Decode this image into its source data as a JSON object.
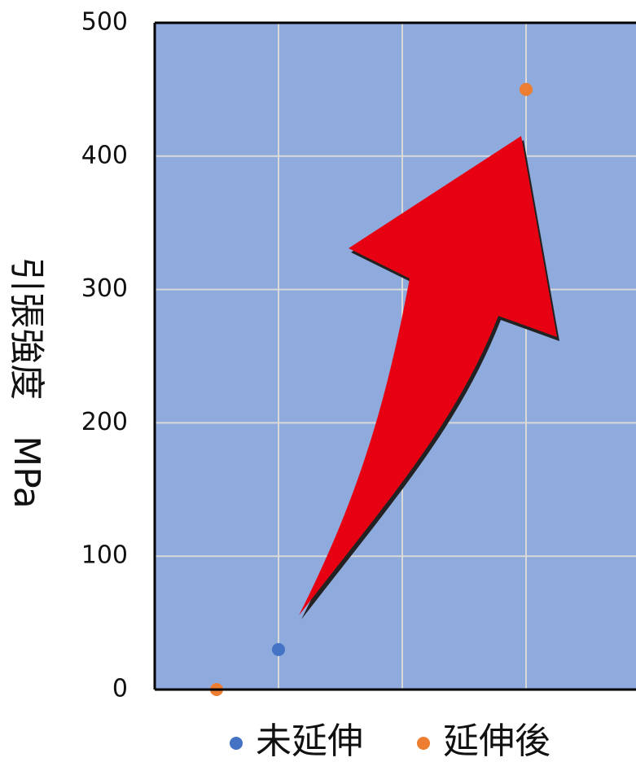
{
  "chart_data": {
    "type": "scatter",
    "ylabel": "引張強度　MPa",
    "ylim": [
      0,
      500
    ],
    "yticks": [
      0,
      100,
      200,
      300,
      400,
      500
    ],
    "grid": true,
    "legend_position": "bottom",
    "series": [
      {
        "name": "未延伸",
        "color": "#4472c4",
        "points": [
          {
            "x": 1,
            "y": 30
          }
        ]
      },
      {
        "name": "延伸後",
        "color": "#ed7d31",
        "points": [
          {
            "x": 0.5,
            "y": 0
          },
          {
            "x": 3,
            "y": 450
          }
        ]
      }
    ],
    "annotation": {
      "type": "arrow",
      "color": "#e60012",
      "meaning": "increase"
    },
    "plot_background": "#8faadc"
  }
}
